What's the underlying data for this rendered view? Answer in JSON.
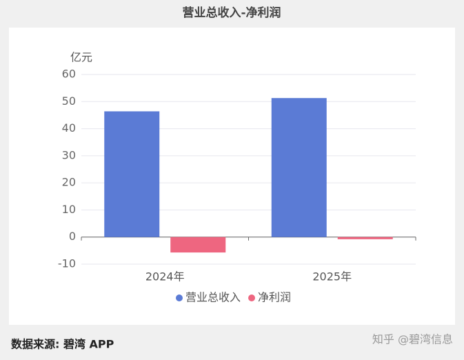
{
  "title": "营业总收入-净利润",
  "chart_data": {
    "type": "bar",
    "y_label": "亿元",
    "categories": [
      "2024年",
      "2025年"
    ],
    "series": [
      {
        "name": "营业总收入",
        "color": "#5b7bd5",
        "values": [
          46.4,
          51.3
        ]
      },
      {
        "name": "净利润",
        "color": "#ee6680",
        "values": [
          -5.7,
          -0.8
        ]
      }
    ],
    "ylim": [
      -10,
      60
    ],
    "yticks": [
      -10,
      0,
      10,
      20,
      30,
      40,
      50,
      60
    ],
    "grid": true
  },
  "footer": {
    "source": "数据来源: 碧湾 APP",
    "credit": "知乎 @碧湾信息"
  }
}
